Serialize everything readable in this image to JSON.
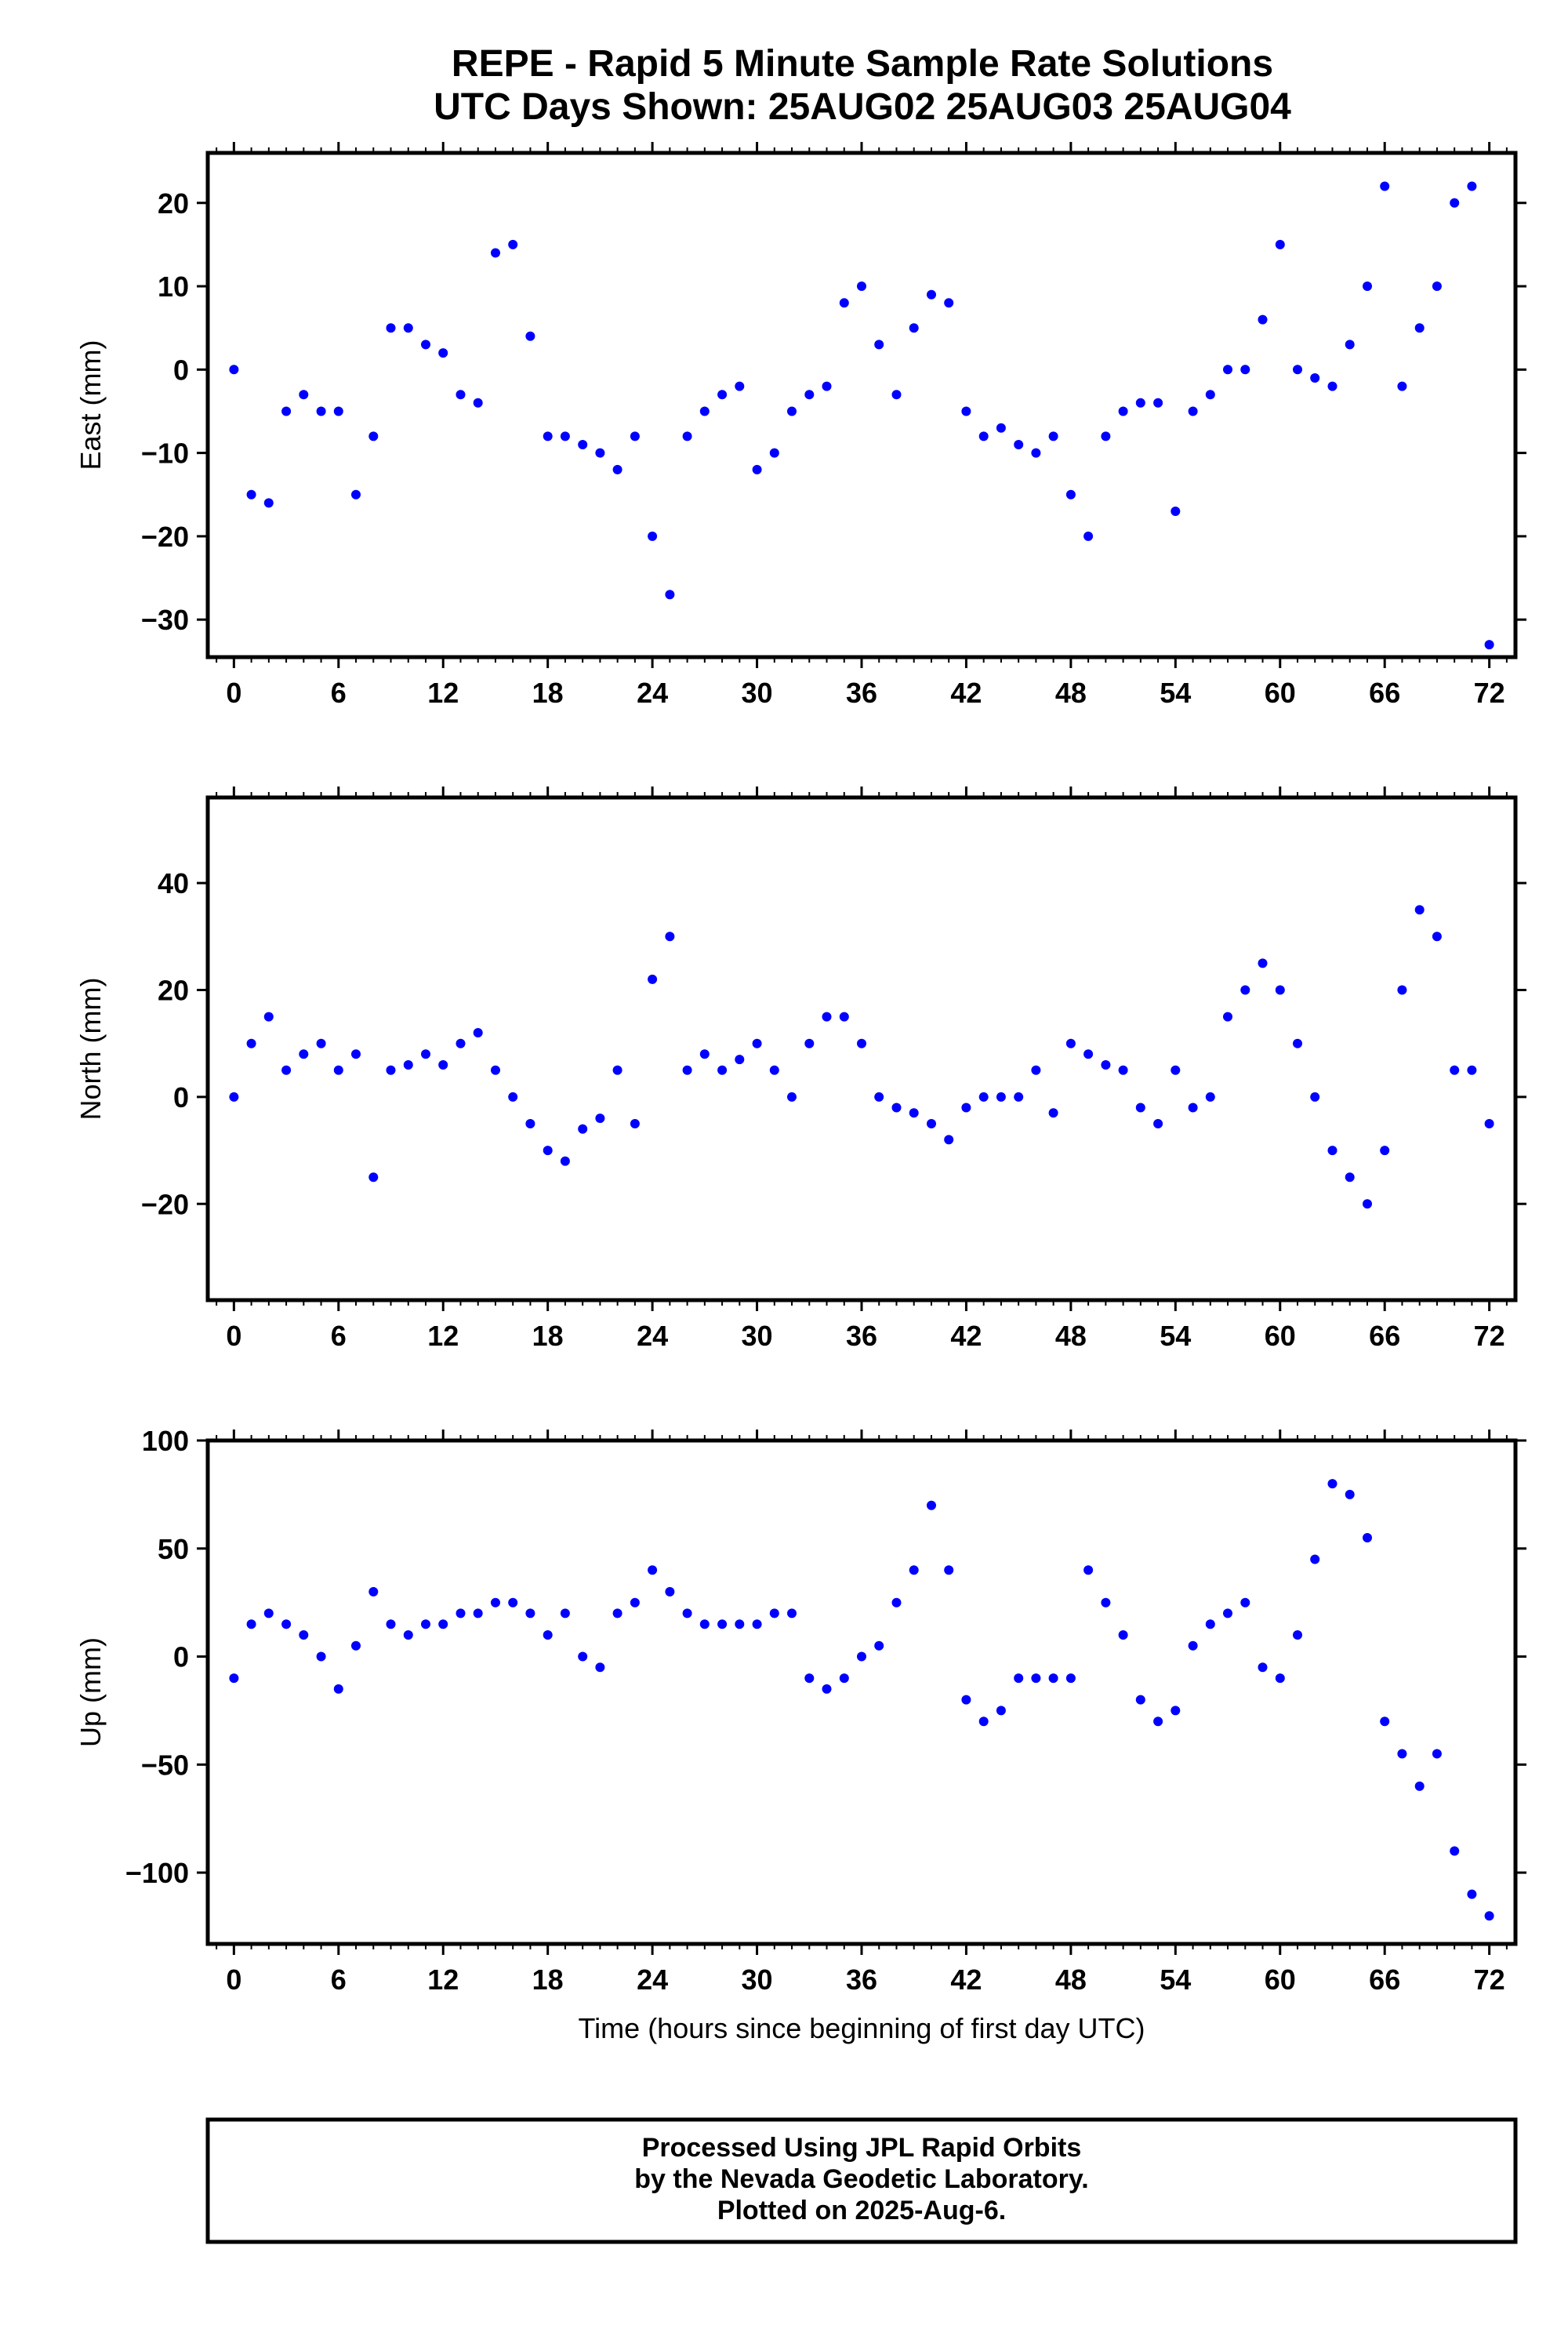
{
  "title_line1": "REPE - Rapid 5 Minute Sample Rate Solutions",
  "title_line2": "UTC Days Shown:  25AUG02 25AUG03 25AUG04",
  "footer": {
    "line1": "Processed Using JPL Rapid Orbits",
    "line2": "by the Nevada Geodetic Laboratory.",
    "line3": "Plotted on 2025-Aug-6."
  },
  "colors": {
    "points": "#0000ff",
    "frame": "#000000"
  },
  "chart_data": [
    {
      "type": "scatter",
      "ylabel": "East (mm)",
      "xlabel": "",
      "xlim": [
        -1.5,
        73.5
      ],
      "ylim": [
        -34.5,
        26
      ],
      "xticks": [
        0,
        6,
        12,
        18,
        24,
        30,
        36,
        42,
        48,
        54,
        60,
        66,
        72
      ],
      "yticks": [
        -30,
        -20,
        -10,
        0,
        10,
        20
      ],
      "ytick_labels": [
        "−30",
        "−20",
        "−10",
        "0",
        "10",
        "20"
      ],
      "x": [
        0,
        1,
        2,
        3,
        4,
        5,
        6,
        7,
        8,
        9,
        10,
        11,
        12,
        13,
        14,
        15,
        16,
        17,
        18,
        19,
        20,
        21,
        22,
        23,
        24,
        25,
        26,
        27,
        28,
        29,
        30,
        31,
        32,
        33,
        34,
        35,
        36,
        37,
        38,
        39,
        40,
        41,
        42,
        43,
        44,
        45,
        46,
        47,
        48,
        49,
        50,
        51,
        52,
        53,
        54,
        55,
        56,
        57,
        58,
        59,
        60,
        61,
        62,
        63,
        64,
        65,
        66,
        67,
        68,
        69,
        70,
        71,
        72
      ],
      "y": [
        0,
        -15,
        -16,
        -5,
        -3,
        -5,
        -5,
        -15,
        -8,
        5,
        5,
        3,
        2,
        -3,
        -4,
        14,
        15,
        4,
        -8,
        -8,
        -9,
        -10,
        -12,
        -8,
        -20,
        -27,
        -8,
        -5,
        -3,
        -2,
        -12,
        -10,
        -5,
        -3,
        -2,
        8,
        10,
        3,
        -3,
        5,
        9,
        8,
        -5,
        -8,
        -7,
        -9,
        -10,
        -8,
        -15,
        -20,
        -8,
        -5,
        -4,
        -4,
        -17,
        -5,
        -3,
        0,
        0,
        6,
        15,
        0,
        -1,
        -2,
        3,
        10,
        22,
        -2,
        5,
        10,
        20,
        22,
        -33
      ]
    },
    {
      "type": "scatter",
      "ylabel": "North (mm)",
      "xlabel": "",
      "xlim": [
        -1.5,
        73.5
      ],
      "ylim": [
        -38,
        56
      ],
      "xticks": [
        0,
        6,
        12,
        18,
        24,
        30,
        36,
        42,
        48,
        54,
        60,
        66,
        72
      ],
      "yticks": [
        -20,
        0,
        20,
        40
      ],
      "ytick_labels": [
        "−20",
        "0",
        "20",
        "40"
      ],
      "x": [
        0,
        1,
        2,
        3,
        4,
        5,
        6,
        7,
        8,
        9,
        10,
        11,
        12,
        13,
        14,
        15,
        16,
        17,
        18,
        19,
        20,
        21,
        22,
        23,
        24,
        25,
        26,
        27,
        28,
        29,
        30,
        31,
        32,
        33,
        34,
        35,
        36,
        37,
        38,
        39,
        40,
        41,
        42,
        43,
        44,
        45,
        46,
        47,
        48,
        49,
        50,
        51,
        52,
        53,
        54,
        55,
        56,
        57,
        58,
        59,
        60,
        61,
        62,
        63,
        64,
        65,
        66,
        67,
        68,
        69,
        70,
        71,
        72
      ],
      "y": [
        0,
        10,
        15,
        5,
        8,
        10,
        5,
        8,
        -15,
        5,
        6,
        8,
        6,
        10,
        12,
        5,
        0,
        -5,
        -10,
        -12,
        -6,
        -4,
        5,
        -5,
        22,
        30,
        5,
        8,
        5,
        7,
        10,
        5,
        0,
        10,
        15,
        15,
        10,
        0,
        -2,
        -3,
        -5,
        -8,
        -2,
        0,
        0,
        0,
        5,
        -3,
        10,
        8,
        6,
        5,
        -2,
        -5,
        5,
        -2,
        0,
        15,
        20,
        25,
        20,
        10,
        0,
        -10,
        -15,
        -20,
        -10,
        20,
        35,
        30,
        5,
        5,
        -5
      ]
    },
    {
      "type": "scatter",
      "ylabel": "Up (mm)",
      "xlabel": "Time (hours since beginning of first day UTC)",
      "xlim": [
        -1.5,
        73.5
      ],
      "ylim": [
        -133,
        100
      ],
      "xticks": [
        0,
        6,
        12,
        18,
        24,
        30,
        36,
        42,
        48,
        54,
        60,
        66,
        72
      ],
      "yticks": [
        -100,
        -50,
        0,
        50,
        100
      ],
      "ytick_labels": [
        "−100",
        "−50",
        "0",
        "50",
        "100"
      ],
      "x": [
        0,
        1,
        2,
        3,
        4,
        5,
        6,
        7,
        8,
        9,
        10,
        11,
        12,
        13,
        14,
        15,
        16,
        17,
        18,
        19,
        20,
        21,
        22,
        23,
        24,
        25,
        26,
        27,
        28,
        29,
        30,
        31,
        32,
        33,
        34,
        35,
        36,
        37,
        38,
        39,
        40,
        41,
        42,
        43,
        44,
        45,
        46,
        47,
        48,
        49,
        50,
        51,
        52,
        53,
        54,
        55,
        56,
        57,
        58,
        59,
        60,
        61,
        62,
        63,
        64,
        65,
        66,
        67,
        68,
        69,
        70,
        71,
        72
      ],
      "y": [
        -10,
        15,
        20,
        15,
        10,
        0,
        -15,
        5,
        30,
        15,
        10,
        15,
        15,
        20,
        20,
        25,
        25,
        20,
        10,
        20,
        0,
        -5,
        20,
        25,
        40,
        30,
        20,
        15,
        15,
        15,
        15,
        20,
        20,
        -10,
        -15,
        -10,
        0,
        5,
        25,
        40,
        70,
        40,
        -20,
        -30,
        -25,
        -10,
        -10,
        -10,
        -10,
        40,
        25,
        10,
        -20,
        -30,
        -25,
        5,
        15,
        20,
        25,
        -5,
        -10,
        10,
        45,
        80,
        75,
        55,
        -30,
        -45,
        -60,
        -45,
        -90,
        -110,
        -120
      ]
    }
  ]
}
